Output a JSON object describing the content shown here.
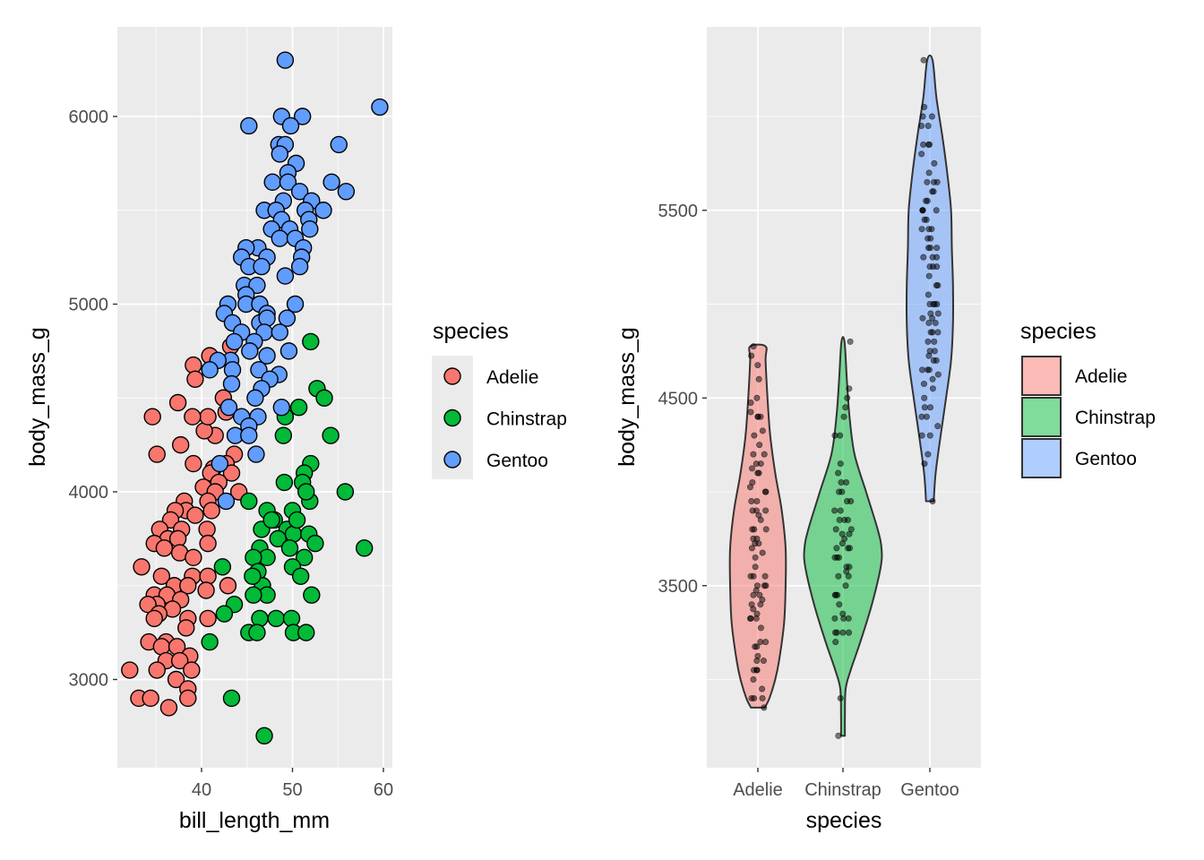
{
  "colors": {
    "Adelie": "#F8766D",
    "Chinstrap": "#00BA38",
    "Gentoo": "#619CFF",
    "panel": "#EBEBEB"
  },
  "chart_data": [
    {
      "type": "scatter",
      "xlabel": "bill_length_mm",
      "ylabel": "body_mass_g",
      "xlim": [
        30.7,
        60.2
      ],
      "ylim": [
        2527,
        6477
      ],
      "xticks": [
        {
          "v": 40,
          "label": "40"
        },
        {
          "v": 50,
          "label": "50"
        },
        {
          "v": 60,
          "label": "60"
        }
      ],
      "yticks": [
        {
          "v": 3000,
          "label": "3000"
        },
        {
          "v": 4000,
          "label": "4000"
        },
        {
          "v": 5000,
          "label": "5000"
        },
        {
          "v": 6000,
          "label": "6000"
        }
      ],
      "grid": true,
      "legend": {
        "title": "species",
        "placement": "right",
        "entries": [
          "Adelie",
          "Chinstrap",
          "Gentoo"
        ]
      },
      "series": [
        {
          "name": "Adelie",
          "points": [
            [
              39.1,
              4675
            ],
            [
              39.3,
              4600
            ],
            [
              40.9,
              4725
            ],
            [
              43.2,
              4775
            ],
            [
              42.4,
              4500
            ],
            [
              34.6,
              4400
            ],
            [
              37.4,
              4475
            ],
            [
              35.1,
              4200
            ],
            [
              37.7,
              4250
            ],
            [
              39.1,
              4150
            ],
            [
              41.5,
              4300
            ],
            [
              40.3,
              4325
            ],
            [
              40.7,
              4400
            ],
            [
              42.7,
              4425
            ],
            [
              39.0,
              4400
            ],
            [
              43.6,
              4200
            ],
            [
              42.7,
              4150
            ],
            [
              41.3,
              4125
            ],
            [
              41.0,
              4100
            ],
            [
              43.3,
              4100
            ],
            [
              41.9,
              4050
            ],
            [
              40.2,
              4025
            ],
            [
              41.5,
              4000
            ],
            [
              44.1,
              4000
            ],
            [
              40.7,
              3950
            ],
            [
              38.1,
              3950
            ],
            [
              38.3,
              3900
            ],
            [
              37.1,
              3900
            ],
            [
              41.1,
              3900
            ],
            [
              39.3,
              3875
            ],
            [
              36.6,
              3850
            ],
            [
              35.4,
              3800
            ],
            [
              37.8,
              3800
            ],
            [
              40.6,
              3800
            ],
            [
              36.3,
              3750
            ],
            [
              37.4,
              3750
            ],
            [
              40.7,
              3725
            ],
            [
              34.8,
              3725
            ],
            [
              35.9,
              3700
            ],
            [
              37.6,
              3675
            ],
            [
              39.1,
              3650
            ],
            [
              33.4,
              3600
            ],
            [
              35.6,
              3550
            ],
            [
              39.0,
              3550
            ],
            [
              40.7,
              3550
            ],
            [
              37.0,
              3500
            ],
            [
              38.5,
              3500
            ],
            [
              34.8,
              3450
            ],
            [
              36.2,
              3450
            ],
            [
              40.5,
              3475
            ],
            [
              37.7,
              3425
            ],
            [
              35.1,
              3400
            ],
            [
              34.1,
              3400
            ],
            [
              36.8,
              3375
            ],
            [
              35.3,
              3350
            ],
            [
              38.5,
              3325
            ],
            [
              40.7,
              3325
            ],
            [
              34.8,
              3325
            ],
            [
              38.3,
              3275
            ],
            [
              34.2,
              3200
            ],
            [
              36.1,
              3200
            ],
            [
              35.6,
              3175
            ],
            [
              37.3,
              3175
            ],
            [
              38.7,
              3125
            ],
            [
              36.1,
              3100
            ],
            [
              37.6,
              3100
            ],
            [
              32.1,
              3050
            ],
            [
              35.1,
              3050
            ],
            [
              38.9,
              3050
            ],
            [
              37.2,
              3000
            ],
            [
              38.5,
              2950
            ],
            [
              33.1,
              2900
            ],
            [
              34.4,
              2900
            ],
            [
              38.5,
              2900
            ],
            [
              36.4,
              2850
            ],
            [
              42.9,
              3500
            ]
          ]
        },
        {
          "name": "Chinstrap",
          "points": [
            [
              52.0,
              4800
            ],
            [
              52.7,
              4550
            ],
            [
              53.5,
              4500
            ],
            [
              50.7,
              4450
            ],
            [
              49.2,
              4400
            ],
            [
              54.2,
              4300
            ],
            [
              49.0,
              4300
            ],
            [
              52.0,
              4150
            ],
            [
              51.3,
              4100
            ],
            [
              51.1,
              4050
            ],
            [
              49.1,
              4050
            ],
            [
              51.9,
              3950
            ],
            [
              51.5,
              4000
            ],
            [
              45.2,
              3950
            ],
            [
              50.0,
              3900
            ],
            [
              47.2,
              3900
            ],
            [
              48.0,
              3850
            ],
            [
              55.8,
              4000
            ],
            [
              46.6,
              3800
            ],
            [
              49.4,
              3800
            ],
            [
              50.1,
              3775
            ],
            [
              51.8,
              3775
            ],
            [
              48.4,
              3750
            ],
            [
              52.5,
              3725
            ],
            [
              57.9,
              3700
            ],
            [
              49.7,
              3700
            ],
            [
              46.4,
              3700
            ],
            [
              51.3,
              3650
            ],
            [
              47.2,
              3650
            ],
            [
              45.7,
              3650
            ],
            [
              50.0,
              3600
            ],
            [
              46.2,
              3575
            ],
            [
              46.7,
              3500
            ],
            [
              42.3,
              3600
            ],
            [
              50.9,
              3550
            ],
            [
              45.6,
              3550
            ],
            [
              47.2,
              3450
            ],
            [
              52.1,
              3450
            ],
            [
              45.7,
              3450
            ],
            [
              48.2,
              3325
            ],
            [
              46.4,
              3325
            ],
            [
              49.9,
              3325
            ],
            [
              50.1,
              3250
            ],
            [
              51.5,
              3250
            ],
            [
              45.2,
              3250
            ],
            [
              46.1,
              3250
            ],
            [
              43.6,
              3400
            ],
            [
              42.5,
              3350
            ],
            [
              40.9,
              3200
            ],
            [
              43.3,
              2900
            ],
            [
              46.9,
              2700
            ],
            [
              47.7,
              3850
            ],
            [
              50.5,
              3850
            ]
          ]
        },
        {
          "name": "Gentoo",
          "points": [
            [
              49.2,
              6300
            ],
            [
              59.6,
              6050
            ],
            [
              45.2,
              5950
            ],
            [
              48.8,
              6000
            ],
            [
              51.1,
              6000
            ],
            [
              49.8,
              5950
            ],
            [
              55.1,
              5850
            ],
            [
              48.5,
              5850
            ],
            [
              49.2,
              5850
            ],
            [
              48.6,
              5800
            ],
            [
              50.4,
              5750
            ],
            [
              49.5,
              5700
            ],
            [
              47.8,
              5650
            ],
            [
              49.5,
              5650
            ],
            [
              54.3,
              5650
            ],
            [
              55.9,
              5600
            ],
            [
              50.8,
              5600
            ],
            [
              49.0,
              5550
            ],
            [
              52.1,
              5550
            ],
            [
              46.9,
              5500
            ],
            [
              48.2,
              5500
            ],
            [
              53.4,
              5500
            ],
            [
              51.4,
              5500
            ],
            [
              48.8,
              5450
            ],
            [
              51.8,
              5450
            ],
            [
              47.7,
              5400
            ],
            [
              49.7,
              5400
            ],
            [
              51.9,
              5400
            ],
            [
              48.6,
              5350
            ],
            [
              50.3,
              5350
            ],
            [
              51.2,
              5300
            ],
            [
              46.2,
              5300
            ],
            [
              44.9,
              5300
            ],
            [
              44.4,
              5250
            ],
            [
              47.2,
              5250
            ],
            [
              51.0,
              5250
            ],
            [
              45.2,
              5200
            ],
            [
              46.6,
              5200
            ],
            [
              50.8,
              5200
            ],
            [
              49.2,
              5150
            ],
            [
              44.7,
              5100
            ],
            [
              46.1,
              5100
            ],
            [
              44.9,
              5050
            ],
            [
              42.9,
              5000
            ],
            [
              44.9,
              5000
            ],
            [
              46.4,
              5000
            ],
            [
              50.3,
              5000
            ],
            [
              47.2,
              4950
            ],
            [
              42.5,
              4950
            ],
            [
              49.4,
              4925
            ],
            [
              43.4,
              4900
            ],
            [
              46.4,
              4900
            ],
            [
              47.2,
              4925
            ],
            [
              44.4,
              4850
            ],
            [
              46.9,
              4850
            ],
            [
              48.6,
              4850
            ],
            [
              43.6,
              4800
            ],
            [
              45.8,
              4800
            ],
            [
              49.6,
              4750
            ],
            [
              45.3,
              4750
            ],
            [
              47.2,
              4725
            ],
            [
              43.2,
              4700
            ],
            [
              41.8,
              4700
            ],
            [
              46.3,
              4650
            ],
            [
              40.9,
              4650
            ],
            [
              43.4,
              4650
            ],
            [
              48.5,
              4625
            ],
            [
              47.5,
              4600
            ],
            [
              43.3,
              4575
            ],
            [
              46.6,
              4550
            ],
            [
              45.9,
              4500
            ],
            [
              48.8,
              4450
            ],
            [
              43.0,
              4450
            ],
            [
              44.4,
              4400
            ],
            [
              46.2,
              4400
            ],
            [
              45.2,
              4350
            ],
            [
              43.7,
              4300
            ],
            [
              45.2,
              4300
            ],
            [
              46.0,
              4200
            ],
            [
              42.0,
              4150
            ],
            [
              42.7,
              3950
            ]
          ]
        }
      ]
    },
    {
      "type": "violin",
      "xlabel": "species",
      "ylabel": "body_mass_g",
      "categories": [
        "Adelie",
        "Chinstrap",
        "Gentoo"
      ],
      "ylim": [
        2527,
        6477
      ],
      "yticks": [
        {
          "v": 3500,
          "label": "3500"
        },
        {
          "v": 4500,
          "label": "4500"
        },
        {
          "v": 5500,
          "label": "5500"
        }
      ],
      "grid": true,
      "fill_alpha": 0.5,
      "jitter_points": "body_mass_g of each species (from scatter series)",
      "legend": {
        "title": "species",
        "placement": "right",
        "entries": [
          "Adelie",
          "Chinstrap",
          "Gentoo"
        ]
      },
      "density_profiles": {
        "Adelie": [
          [
            2850,
            0.18
          ],
          [
            2900,
            0.3
          ],
          [
            3000,
            0.45
          ],
          [
            3100,
            0.55
          ],
          [
            3300,
            0.68
          ],
          [
            3500,
            0.72
          ],
          [
            3700,
            0.72
          ],
          [
            3900,
            0.62
          ],
          [
            4100,
            0.45
          ],
          [
            4300,
            0.32
          ],
          [
            4500,
            0.25
          ],
          [
            4700,
            0.2
          ],
          [
            4775,
            0.2
          ]
        ],
        "Chinstrap": [
          [
            2700,
            0.05
          ],
          [
            2800,
            0.05
          ],
          [
            2950,
            0.07
          ],
          [
            3050,
            0.2
          ],
          [
            3200,
            0.45
          ],
          [
            3400,
            0.75
          ],
          [
            3600,
            0.98
          ],
          [
            3700,
            1.0
          ],
          [
            3800,
            0.9
          ],
          [
            4000,
            0.6
          ],
          [
            4200,
            0.3
          ],
          [
            4400,
            0.17
          ],
          [
            4600,
            0.1
          ],
          [
            4800,
            0.04
          ]
        ],
        "Gentoo": [
          [
            3950,
            0.1
          ],
          [
            4100,
            0.15
          ],
          [
            4300,
            0.28
          ],
          [
            4500,
            0.42
          ],
          [
            4700,
            0.55
          ],
          [
            4900,
            0.6
          ],
          [
            5100,
            0.6
          ],
          [
            5300,
            0.57
          ],
          [
            5500,
            0.55
          ],
          [
            5700,
            0.45
          ],
          [
            5900,
            0.32
          ],
          [
            6100,
            0.17
          ],
          [
            6300,
            0.07
          ]
        ]
      }
    }
  ]
}
